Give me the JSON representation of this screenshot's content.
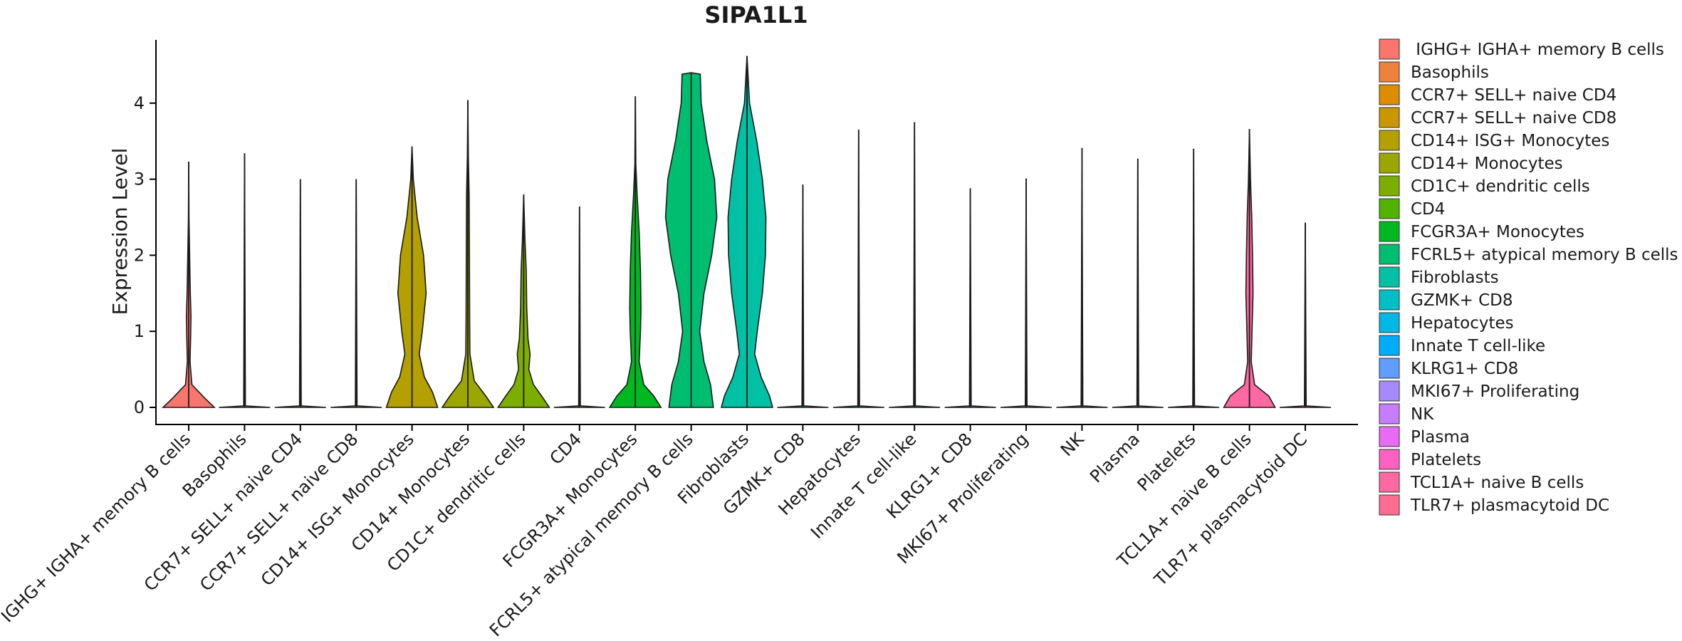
{
  "chart_data": {
    "type": "violin",
    "title": "SIPA1L1",
    "xlabel": "",
    "ylabel": "Expression Level",
    "ylim": [
      -0.22,
      4.85
    ],
    "yticks": [
      0,
      1,
      2,
      3,
      4
    ],
    "legend_position": "right",
    "categories": [
      " IGHG+ IGHA+ memory B cells",
      "Basophils",
      "CCR7+ SELL+ naive CD4",
      "CCR7+ SELL+ naive CD8",
      "CD14+ ISG+ Monocytes",
      "CD14+ Monocytes",
      "CD1C+ dendritic cells",
      "CD4",
      "FCGR3A+ Monocytes",
      "FCRL5+ atypical memory B cells",
      "Fibroblasts",
      "GZMK+ CD8",
      "Hepatocytes",
      "Innate T cell-like",
      "KLRG1+ CD8",
      "MKI67+ Proliferating",
      "NK",
      "Plasma",
      "Platelets",
      "TCL1A+ naive B cells",
      "TLR7+ plasmacytoid DC"
    ],
    "colors": [
      "#F8766D",
      "#EC823C",
      "#DD8D00",
      "#CA9700",
      "#B4A000",
      "#9BA700",
      "#7CAE00",
      "#4FB300",
      "#00B81F",
      "#00BE70",
      "#00C1A3",
      "#00BFC4",
      "#00B8E5",
      "#00ADFA",
      "#619CFF",
      "#A58AFF",
      "#C77CFF",
      "#E76BF3",
      "#FF61C3",
      "#FF68A1",
      "#FF6C91"
    ],
    "series": [
      {
        "name": " IGHG+ IGHA+ memory B cells",
        "max": 3.23,
        "profile": [
          [
            0,
            0.95
          ],
          [
            0.12,
            0.6
          ],
          [
            0.3,
            0.12
          ],
          [
            0.6,
            0.05
          ],
          [
            0.9,
            0.07
          ],
          [
            1.2,
            0.085
          ],
          [
            1.5,
            0.06
          ],
          [
            2.0,
            0.035
          ],
          [
            2.5,
            0.01
          ],
          [
            3.23,
            0
          ]
        ]
      },
      {
        "name": "Basophils",
        "max": 3.34,
        "profile": [
          [
            0,
            0.6
          ],
          [
            0.02,
            0.02
          ],
          [
            3.34,
            0
          ]
        ]
      },
      {
        "name": "CCR7+ SELL+ naive CD4",
        "max": 3.0,
        "profile": [
          [
            0,
            0.6
          ],
          [
            0.02,
            0.02
          ],
          [
            3.0,
            0
          ]
        ]
      },
      {
        "name": "CCR7+ SELL+ naive CD8",
        "max": 3.0,
        "profile": [
          [
            0,
            0.6
          ],
          [
            0.02,
            0.02
          ],
          [
            3.0,
            0
          ]
        ]
      },
      {
        "name": "CD14+ ISG+ Monocytes",
        "max": 3.43,
        "profile": [
          [
            0,
            1.0
          ],
          [
            0.2,
            0.8
          ],
          [
            0.4,
            0.48
          ],
          [
            0.7,
            0.28
          ],
          [
            1.0,
            0.4
          ],
          [
            1.5,
            0.55
          ],
          [
            2.0,
            0.45
          ],
          [
            2.5,
            0.2
          ],
          [
            3.0,
            0.05
          ],
          [
            3.43,
            0
          ]
        ]
      },
      {
        "name": "CD14+ Monocytes",
        "max": 4.04,
        "profile": [
          [
            0,
            1.0
          ],
          [
            0.15,
            0.7
          ],
          [
            0.35,
            0.25
          ],
          [
            0.7,
            0.08
          ],
          [
            1.2,
            0.07
          ],
          [
            2.0,
            0.06
          ],
          [
            2.8,
            0.05
          ],
          [
            3.3,
            0.02
          ],
          [
            4.04,
            0
          ]
        ]
      },
      {
        "name": "CD1C+ dendritic cells",
        "max": 2.8,
        "profile": [
          [
            0,
            1.0
          ],
          [
            0.15,
            0.7
          ],
          [
            0.3,
            0.38
          ],
          [
            0.5,
            0.2
          ],
          [
            0.7,
            0.25
          ],
          [
            0.9,
            0.17
          ],
          [
            1.3,
            0.12
          ],
          [
            1.8,
            0.1
          ],
          [
            2.2,
            0.05
          ],
          [
            2.8,
            0
          ]
        ]
      },
      {
        "name": "CD4",
        "max": 2.64,
        "profile": [
          [
            0,
            0.6
          ],
          [
            0.02,
            0.02
          ],
          [
            2.64,
            0
          ]
        ]
      },
      {
        "name": "FCGR3A+ Monocytes",
        "max": 4.09,
        "profile": [
          [
            0,
            1.0
          ],
          [
            0.15,
            0.72
          ],
          [
            0.3,
            0.33
          ],
          [
            0.6,
            0.15
          ],
          [
            1.0,
            0.2
          ],
          [
            1.3,
            0.22
          ],
          [
            1.8,
            0.2
          ],
          [
            2.3,
            0.15
          ],
          [
            2.8,
            0.07
          ],
          [
            3.2,
            0.02
          ],
          [
            4.09,
            0
          ]
        ]
      },
      {
        "name": "FCRL5+ atypical memory B cells",
        "max": 4.4,
        "profile": [
          [
            0,
            0.78
          ],
          [
            0.3,
            0.68
          ],
          [
            0.6,
            0.45
          ],
          [
            1.0,
            0.3
          ],
          [
            1.5,
            0.45
          ],
          [
            2.0,
            0.72
          ],
          [
            2.5,
            0.9
          ],
          [
            3.0,
            0.82
          ],
          [
            3.5,
            0.55
          ],
          [
            4.0,
            0.35
          ],
          [
            4.38,
            0.32
          ],
          [
            4.4,
            0
          ]
        ]
      },
      {
        "name": "Fibroblasts",
        "max": 4.62,
        "profile": [
          [
            0,
            1.0
          ],
          [
            0.15,
            0.88
          ],
          [
            0.4,
            0.55
          ],
          [
            0.7,
            0.3
          ],
          [
            1.0,
            0.4
          ],
          [
            1.5,
            0.6
          ],
          [
            2.0,
            0.72
          ],
          [
            2.5,
            0.74
          ],
          [
            3.0,
            0.6
          ],
          [
            3.5,
            0.38
          ],
          [
            4.0,
            0.1
          ],
          [
            4.62,
            0
          ]
        ]
      },
      {
        "name": "GZMK+ CD8",
        "max": 2.93,
        "profile": [
          [
            0,
            0.6
          ],
          [
            0.02,
            0.02
          ],
          [
            2.93,
            0
          ]
        ]
      },
      {
        "name": "Hepatocytes",
        "max": 3.65,
        "profile": [
          [
            0,
            0.6
          ],
          [
            0.02,
            0.02
          ],
          [
            3.65,
            0
          ]
        ]
      },
      {
        "name": "Innate T cell-like",
        "max": 3.75,
        "profile": [
          [
            0,
            0.6
          ],
          [
            0.02,
            0.02
          ],
          [
            3.75,
            0
          ]
        ]
      },
      {
        "name": "KLRG1+ CD8",
        "max": 2.88,
        "profile": [
          [
            0,
            0.6
          ],
          [
            0.02,
            0.02
          ],
          [
            2.88,
            0
          ]
        ]
      },
      {
        "name": "MKI67+ Proliferating",
        "max": 3.01,
        "profile": [
          [
            0,
            0.6
          ],
          [
            0.02,
            0.02
          ],
          [
            3.01,
            0
          ]
        ]
      },
      {
        "name": "NK",
        "max": 3.41,
        "profile": [
          [
            0,
            0.6
          ],
          [
            0.02,
            0.02
          ],
          [
            3.41,
            0
          ]
        ]
      },
      {
        "name": "Plasma",
        "max": 3.27,
        "profile": [
          [
            0,
            0.6
          ],
          [
            0.02,
            0.02
          ],
          [
            3.27,
            0
          ]
        ]
      },
      {
        "name": "Platelets",
        "max": 3.4,
        "profile": [
          [
            0,
            0.6
          ],
          [
            0.02,
            0.02
          ],
          [
            3.4,
            0
          ]
        ]
      },
      {
        "name": "TCL1A+ naive B cells",
        "max": 3.66,
        "profile": [
          [
            0,
            1.0
          ],
          [
            0.15,
            0.75
          ],
          [
            0.3,
            0.2
          ],
          [
            0.6,
            0.07
          ],
          [
            1.0,
            0.1
          ],
          [
            1.5,
            0.14
          ],
          [
            2.0,
            0.12
          ],
          [
            2.5,
            0.09
          ],
          [
            3.0,
            0.04
          ],
          [
            3.66,
            0
          ]
        ]
      },
      {
        "name": "TLR7+ plasmacytoid DC",
        "max": 2.43,
        "profile": [
          [
            0,
            0.6
          ],
          [
            0.02,
            0.02
          ],
          [
            2.43,
            0
          ]
        ]
      }
    ]
  }
}
